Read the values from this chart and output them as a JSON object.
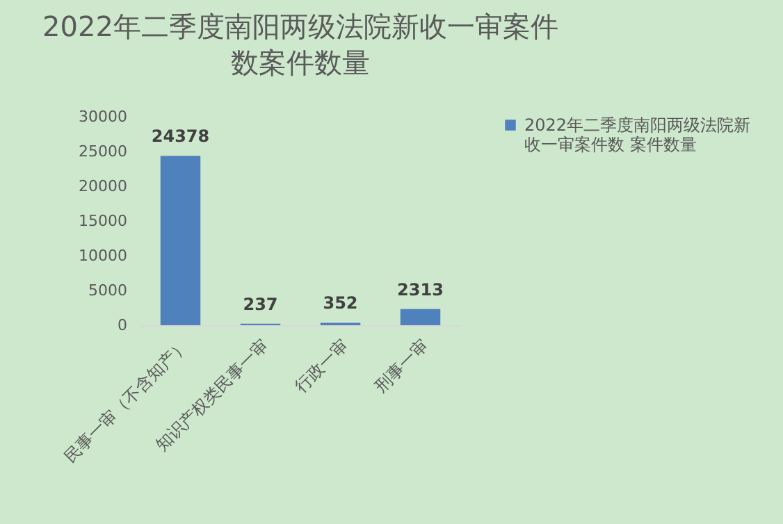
{
  "chart_data": {
    "type": "bar",
    "title": "2022年二季度南阳两级法院新收一审案件数案件数量",
    "categories": [
      "民事一审（不含知产）",
      "知识产权类民事一审",
      "行政一审",
      "刑事一审"
    ],
    "series": [
      {
        "name": "2022年二季度南阳两级法院新收一审案件数 案件数量",
        "color": "#4f81bd",
        "values": [
          24378,
          237,
          352,
          2313
        ]
      }
    ],
    "ylim": [
      0,
      30000
    ],
    "yticks": [
      0,
      5000,
      10000,
      15000,
      20000,
      25000,
      30000
    ],
    "grid": false,
    "legend": "right",
    "data_labels": true
  }
}
